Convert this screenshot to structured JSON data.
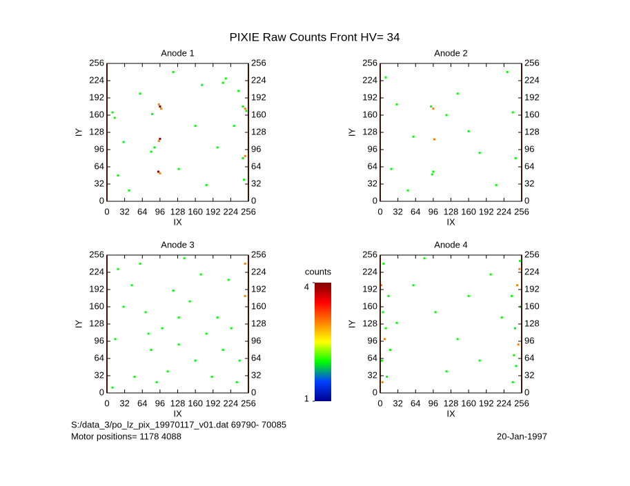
{
  "title": "PIXIE Raw Counts Front HV= 34",
  "chart_data": [
    {
      "type": "scatter",
      "title": "Anode 1",
      "x_label": "IX",
      "y_label": "IY",
      "xlim": [
        0,
        256
      ],
      "ylim": [
        0,
        256
      ],
      "xticks": [
        0,
        32,
        64,
        96,
        128,
        160,
        192,
        224,
        256
      ],
      "yticks": [
        0,
        32,
        64,
        96,
        128,
        160,
        192,
        224,
        256
      ],
      "x": [
        96,
        98,
        94,
        96,
        94,
        93,
        96,
        250,
        246,
        252,
        250,
        246,
        10,
        14,
        82,
        86,
        80,
        215,
        210,
        172,
        238,
        20,
        248,
        30,
        130,
        160,
        200,
        60,
        120,
        230,
        40,
        180
      ],
      "values": [
        176,
        172,
        180,
        116,
        112,
        55,
        52,
        172,
        176,
        168,
        84,
        80,
        165,
        155,
        162,
        100,
        92,
        228,
        220,
        216,
        205,
        48,
        40,
        110,
        60,
        140,
        100,
        200,
        240,
        140,
        20,
        30
      ],
      "counts": [
        4,
        3,
        3,
        4,
        3,
        4,
        3,
        3,
        2,
        2,
        3,
        2,
        2,
        2,
        2,
        2,
        2,
        2,
        2,
        2,
        2,
        2,
        2,
        2,
        2,
        2,
        2,
        2,
        2,
        2,
        2,
        2
      ]
    },
    {
      "type": "scatter",
      "title": "Anode 2",
      "x_label": "IX",
      "y_label": "IY",
      "xlim": [
        0,
        256
      ],
      "ylim": [
        0,
        256
      ],
      "xticks": [
        0,
        32,
        64,
        96,
        128,
        160,
        192,
        224,
        256
      ],
      "yticks": [
        0,
        32,
        64,
        96,
        128,
        160,
        192,
        224,
        256
      ],
      "x": [
        96,
        92,
        98,
        96,
        94,
        240,
        245,
        10,
        20,
        60,
        140,
        180,
        210,
        120,
        50,
        230,
        160,
        30
      ],
      "values": [
        172,
        176,
        115,
        55,
        50,
        165,
        80,
        230,
        60,
        120,
        200,
        90,
        30,
        160,
        20,
        240,
        130,
        180
      ],
      "counts": [
        3,
        2,
        3,
        2,
        2,
        2,
        2,
        2,
        2,
        2,
        2,
        2,
        2,
        2,
        2,
        2,
        2,
        2
      ]
    },
    {
      "type": "scatter",
      "title": "Anode 3",
      "x_label": "IX",
      "y_label": "IY",
      "xlim": [
        0,
        256
      ],
      "ylim": [
        0,
        256
      ],
      "xticks": [
        0,
        32,
        64,
        96,
        128,
        160,
        192,
        224,
        256
      ],
      "yticks": [
        0,
        32,
        64,
        96,
        128,
        160,
        192,
        224,
        256
      ],
      "x": [
        20,
        45,
        70,
        100,
        130,
        160,
        190,
        220,
        250,
        15,
        240,
        200,
        170,
        140,
        110,
        80,
        50,
        30,
        120,
        150,
        180,
        210,
        235,
        60,
        90,
        250,
        10,
        130,
        75,
        225
      ],
      "values": [
        230,
        200,
        150,
        120,
        90,
        60,
        30,
        210,
        180,
        100,
        60,
        140,
        220,
        250,
        40,
        80,
        30,
        160,
        190,
        170,
        110,
        80,
        20,
        240,
        20,
        240,
        10,
        140,
        110,
        120
      ],
      "counts": [
        2,
        2,
        2,
        2,
        2,
        2,
        2,
        2,
        3,
        2,
        2,
        2,
        2,
        2,
        2,
        2,
        2,
        2,
        2,
        2,
        2,
        2,
        2,
        2,
        2,
        3,
        2,
        2,
        2,
        2
      ]
    },
    {
      "type": "scatter",
      "title": "Anode 4",
      "x_label": "IX",
      "y_label": "IY",
      "xlim": [
        0,
        256
      ],
      "ylim": [
        0,
        256
      ],
      "xticks": [
        0,
        32,
        64,
        96,
        128,
        160,
        192,
        224,
        256
      ],
      "yticks": [
        0,
        32,
        64,
        96,
        128,
        160,
        192,
        224,
        256
      ],
      "x": [
        2,
        5,
        8,
        3,
        12,
        6,
        15,
        10,
        4,
        18,
        252,
        248,
        254,
        244,
        250,
        246,
        240,
        253,
        238,
        242,
        60,
        100,
        140,
        180,
        200,
        120,
        80,
        160,
        30,
        220
      ],
      "values": [
        200,
        150,
        100,
        60,
        30,
        240,
        180,
        120,
        20,
        80,
        230,
        200,
        160,
        120,
        90,
        50,
        20,
        245,
        180,
        70,
        200,
        150,
        100,
        60,
        220,
        40,
        250,
        180,
        130,
        140
      ],
      "counts": [
        3,
        2,
        3,
        2,
        2,
        2,
        2,
        2,
        3,
        2,
        3,
        3,
        2,
        2,
        3,
        2,
        2,
        2,
        2,
        2,
        2,
        2,
        2,
        2,
        2,
        2,
        2,
        2,
        2,
        2
      ]
    }
  ],
  "colorbar": {
    "label": "counts",
    "lim": [
      1,
      4
    ],
    "ticks": [
      1,
      4
    ],
    "colors": [
      "#000090",
      "#0040ff",
      "#00ff00",
      "#ffff00",
      "#ff8000",
      "#ff0000",
      "#800000"
    ]
  },
  "footer": {
    "file": "S:/data_3/po_lz_pix_19970117_v01.dat   69790- 70085",
    "motor": "Motor positions= 1178 4088",
    "date": "20-Jan-1997"
  }
}
